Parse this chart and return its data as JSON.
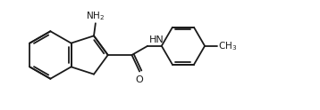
{
  "background_color": "#ffffff",
  "line_color": "#1a1a1a",
  "line_width": 1.3,
  "fig_width": 3.58,
  "fig_height": 1.24,
  "dpi": 100,
  "xlim": [
    0,
    9.5
  ],
  "ylim": [
    0,
    3.3
  ]
}
